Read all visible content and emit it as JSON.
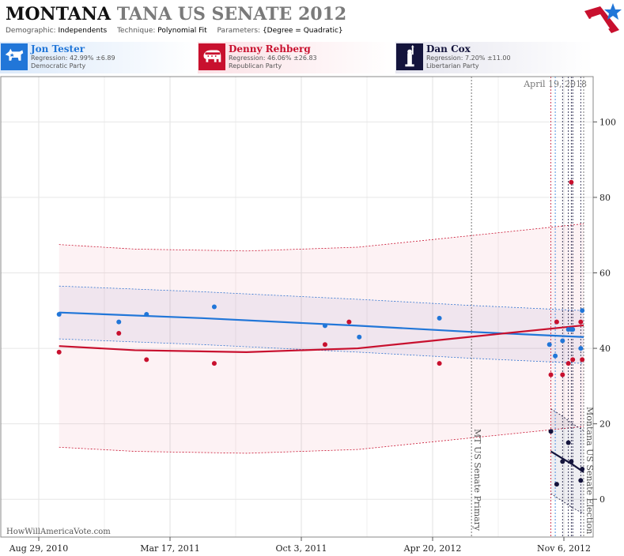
{
  "header": {
    "title_state": "MONTANA",
    "title_rest": "TANA US SENATE 2012",
    "demographic_label": "Demographic:",
    "demographic_value": "Independents",
    "technique_label": "Technique:",
    "technique_value": "Polynomial Fit",
    "parameters_label": "Parameters:",
    "parameters_value": "{Degree = Quadratic}"
  },
  "candidates": [
    {
      "name": "Jon Tester",
      "regression": "Regression: 42.99% ±6.89",
      "party": "Democratic Party",
      "color": "#2176d8",
      "icon": "donkey-icon"
    },
    {
      "name": "Denny Rehberg",
      "regression": "Regression: 46.06% ±26.83",
      "party": "Republican Party",
      "color": "#c8102e",
      "icon": "elephant-icon"
    },
    {
      "name": "Dan Cox",
      "regression": "Regression: 7.20% ±11.00",
      "party": "Libertarian Party",
      "color": "#14143c",
      "icon": "liberty-statue-icon"
    }
  ],
  "watermark": "HowWillAmericaVote.com",
  "chart_data": {
    "type": "scatter",
    "x_ticks": [
      "Aug 29, 2010",
      "Mar 17, 2011",
      "Oct 3, 2011",
      "Apr 20, 2012",
      "Nov 6, 2012"
    ],
    "x_range": [
      "2010-08-29",
      "2012-11-06"
    ],
    "y_ticks": [
      0,
      20,
      40,
      60,
      80,
      100
    ],
    "y_range": [
      -10,
      112
    ],
    "current_date_label": "April 19, 2018",
    "annotations": [
      {
        "date": "2012-06-05",
        "label": "MT US Senate Primary"
      },
      {
        "date": "2012-11-06",
        "label": "Montana US Senate Election"
      }
    ],
    "series": [
      {
        "name": "Jon Tester",
        "color": "#2176d8",
        "points": [
          [
            "2010-11-17",
            49
          ],
          [
            "2011-02-07",
            47
          ],
          [
            "2011-03-17",
            49
          ],
          [
            "2011-06-18",
            51
          ],
          [
            "2011-11-17",
            46
          ],
          [
            "2012-01-03",
            43
          ],
          [
            "2012-04-22",
            48
          ],
          [
            "2012-09-20",
            41
          ],
          [
            "2012-09-28",
            38
          ],
          [
            "2012-10-08",
            42
          ],
          [
            "2012-10-16",
            45
          ],
          [
            "2012-10-20",
            45
          ],
          [
            "2012-10-22",
            45
          ],
          [
            "2012-11-02",
            40
          ],
          [
            "2012-11-04",
            50
          ]
        ],
        "fit": [
          [
            "2010-11-17",
            49.5
          ],
          [
            "2011-06-01",
            48
          ],
          [
            "2012-01-01",
            46
          ],
          [
            "2012-06-01",
            44.4
          ],
          [
            "2012-11-06",
            43.0
          ]
        ],
        "band_upper": [
          [
            "2010-11-17",
            56.5
          ],
          [
            "2011-06-01",
            55
          ],
          [
            "2012-01-01",
            53
          ],
          [
            "2012-06-01",
            51.4
          ],
          [
            "2012-11-06",
            50.0
          ]
        ],
        "band_lower": [
          [
            "2010-11-17",
            42.5
          ],
          [
            "2011-06-01",
            41
          ],
          [
            "2012-01-01",
            39
          ],
          [
            "2012-06-01",
            37.4
          ],
          [
            "2012-11-06",
            36.0
          ]
        ]
      },
      {
        "name": "Denny Rehberg",
        "color": "#c8102e",
        "points": [
          [
            "2010-11-17",
            39
          ],
          [
            "2011-02-07",
            44
          ],
          [
            "2011-03-17",
            37
          ],
          [
            "2011-06-18",
            36
          ],
          [
            "2011-11-17",
            41
          ],
          [
            "2011-12-20",
            47
          ],
          [
            "2012-04-22",
            36
          ],
          [
            "2012-09-22",
            33
          ],
          [
            "2012-09-30",
            47
          ],
          [
            "2012-10-08",
            33
          ],
          [
            "2012-10-16",
            36
          ],
          [
            "2012-10-20",
            84
          ],
          [
            "2012-10-22",
            37
          ],
          [
            "2012-11-02",
            47
          ],
          [
            "2012-11-04",
            37
          ]
        ],
        "fit": [
          [
            "2010-11-17",
            40.6
          ],
          [
            "2011-03-01",
            39.5
          ],
          [
            "2011-08-01",
            39.0
          ],
          [
            "2012-01-01",
            40.0
          ],
          [
            "2012-06-01",
            43.0
          ],
          [
            "2012-11-06",
            46.1
          ]
        ],
        "band_upper": [
          [
            "2010-11-17",
            67.5
          ],
          [
            "2011-03-01",
            66.3
          ],
          [
            "2011-08-01",
            65.8
          ],
          [
            "2012-01-01",
            66.8
          ],
          [
            "2012-06-01",
            69.8
          ],
          [
            "2012-11-06",
            73.0
          ]
        ],
        "band_lower": [
          [
            "2010-11-17",
            13.8
          ],
          [
            "2011-03-01",
            12.7
          ],
          [
            "2011-08-01",
            12.2
          ],
          [
            "2012-01-01",
            13.2
          ],
          [
            "2012-06-01",
            16.2
          ],
          [
            "2012-11-06",
            19.3
          ]
        ]
      },
      {
        "name": "Dan Cox",
        "color": "#14143c",
        "points": [
          [
            "2012-09-22",
            18
          ],
          [
            "2012-09-30",
            4
          ],
          [
            "2012-10-08",
            10
          ],
          [
            "2012-10-16",
            15
          ],
          [
            "2012-10-20",
            10
          ],
          [
            "2012-11-02",
            5
          ],
          [
            "2012-11-04",
            8
          ]
        ],
        "fit": [
          [
            "2012-09-22",
            12.7
          ],
          [
            "2012-10-08",
            10.8
          ],
          [
            "2012-10-22",
            9.2
          ],
          [
            "2012-11-06",
            7.2
          ]
        ],
        "band_upper": [
          [
            "2012-09-22",
            24
          ],
          [
            "2012-10-08",
            22
          ],
          [
            "2012-10-22",
            20
          ],
          [
            "2012-11-06",
            18.2
          ]
        ],
        "band_lower": [
          [
            "2012-09-22",
            1.5
          ],
          [
            "2012-10-08",
            -0.5
          ],
          [
            "2012-10-22",
            -2.3
          ],
          [
            "2012-11-06",
            -3.8
          ]
        ]
      }
    ],
    "poll_date_lines": [
      {
        "date": "2012-09-22",
        "color": "#c8102e"
      },
      {
        "date": "2012-09-28",
        "color": "#2176d8"
      },
      {
        "date": "2012-10-08",
        "color": "#14143c"
      },
      {
        "date": "2012-10-16",
        "color": "#14143c"
      },
      {
        "date": "2012-10-20",
        "color": "#14143c"
      },
      {
        "date": "2012-10-22",
        "color": "#14143c"
      },
      {
        "date": "2012-11-02",
        "color": "#14143c"
      }
    ]
  }
}
